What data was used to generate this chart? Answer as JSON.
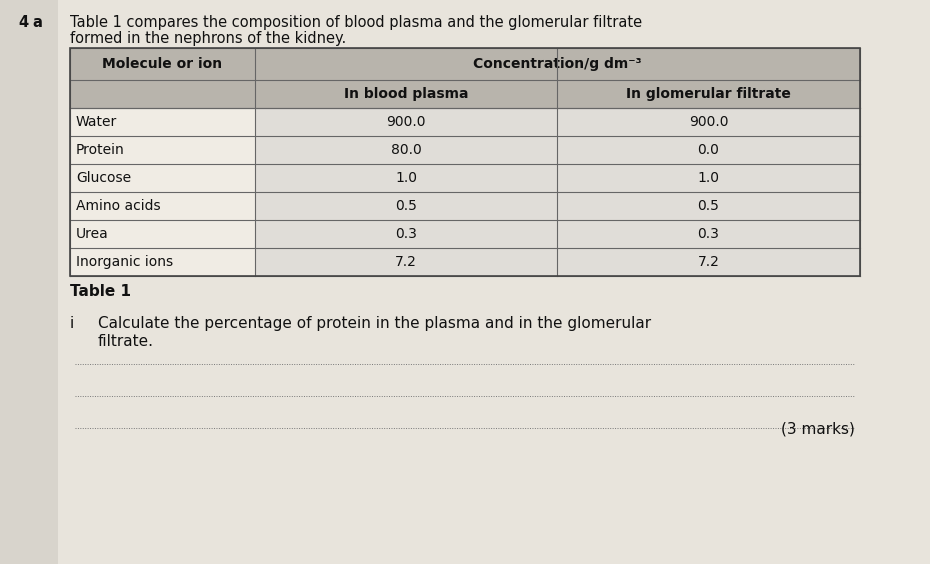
{
  "question_prefix_num": "4",
  "question_prefix_letter": "a",
  "intro_line1": "Table 1 compares the composition of blood plasma and the glomerular filtrate",
  "intro_line2": "formed in the nephrons of the kidney.",
  "table_caption": "Table 1",
  "col0_header": "Molecule or ion",
  "col12_header": "Concentration/g dm⁻³",
  "col1_subheader": "In blood plasma",
  "col2_subheader": "In glomerular filtrate",
  "rows": [
    [
      "Water",
      "900.0",
      "900.0"
    ],
    [
      "Protein",
      "80.0",
      "0.0"
    ],
    [
      "Glucose",
      "1.0",
      "1.0"
    ],
    [
      "Amino acids",
      "0.5",
      "0.5"
    ],
    [
      "Urea",
      "0.3",
      "0.3"
    ],
    [
      "Inorganic ions",
      "7.2",
      "7.2"
    ]
  ],
  "question_num": "i",
  "question_line1": "Calculate the percentage of protein in the plasma and in the glomerular",
  "question_line2": "filtrate.",
  "marks_text": "(3 marks)",
  "bg_color": "#d8d4cc",
  "bg_right_color": "#e8e4dc",
  "table_header_bg": "#b8b4ac",
  "table_data_bg": "#e0ddd8",
  "table_white_bg": "#f0ece4",
  "text_color": "#111111",
  "border_color": "#555555",
  "font_size_intro": 10.5,
  "font_size_table_header": 10,
  "font_size_table_data": 10,
  "font_size_question": 11,
  "font_size_marks": 11
}
